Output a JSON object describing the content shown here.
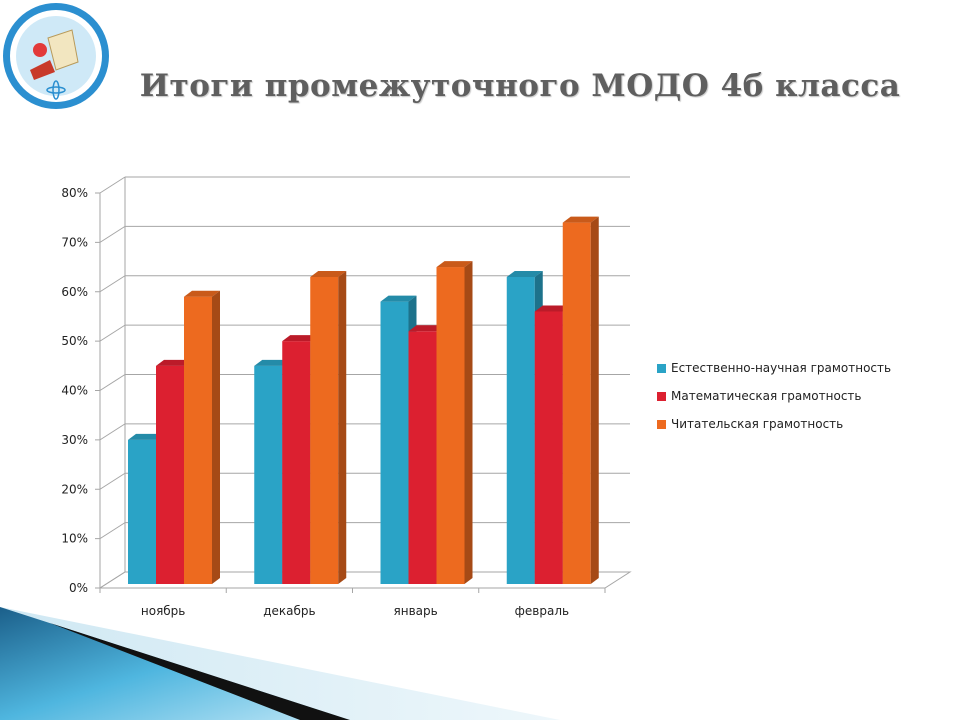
{
  "slide": {
    "title": "Итоги промежуточного МОДО 4б класса",
    "logo_icon": "school-emblem-icon"
  },
  "chart_data": {
    "type": "bar",
    "categories": [
      "ноябрь",
      "декабрь",
      "январь",
      "февраль"
    ],
    "series": [
      {
        "name": "Естественно-научная  грамотность",
        "values": [
          30,
          45,
          58,
          63
        ],
        "color": "#2aa3c6"
      },
      {
        "name": "Математическая  грамотность",
        "values": [
          45,
          50,
          52,
          56
        ],
        "color": "#dc2030"
      },
      {
        "name": "Читательская  грамотность",
        "values": [
          59,
          63,
          65,
          74
        ],
        "color": "#ed6a1f"
      }
    ],
    "y_ticks": [
      "0%",
      "10%",
      "20%",
      "30%",
      "40%",
      "50%",
      "60%",
      "70%",
      "80%"
    ],
    "ylim": [
      0,
      80
    ],
    "grid": true,
    "legend_position": "right",
    "title": "",
    "xlabel": "",
    "ylabel": ""
  }
}
